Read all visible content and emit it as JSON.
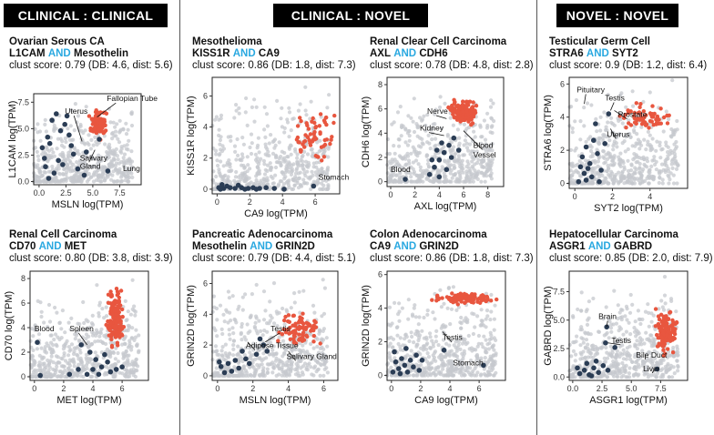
{
  "headers": [
    "CLINICAL : CLINICAL",
    "CLINICAL : NOVEL",
    "NOVEL : NOVEL"
  ],
  "and_word": "AND",
  "colors": {
    "background_points": "#c5c8cd",
    "tumor_points": "#e8563f",
    "normal_points": "#2b3d55",
    "and_highlight": "#29a8e0"
  },
  "chart_data": [
    {
      "type": "scatter",
      "title": "Ovarian Serous CA",
      "gene1": "L1CAM",
      "gene2": "Mesothelin",
      "score_line": "clust score: 0.79 (DB: 4.6, dist: 5.6)",
      "xlabel": "MSLN log(TPM)",
      "ylabel": "L1CAM log(TPM)",
      "xlim": [
        -0.5,
        9.5
      ],
      "ylim": [
        -0.3,
        8.3
      ],
      "xticks": [
        0.0,
        2.5,
        5.0,
        7.5
      ],
      "yticks": [
        0.0,
        2.5,
        5.0,
        7.5
      ],
      "tumor": {
        "cx": [
          4.5,
          6.5
        ],
        "cy": [
          4,
          7
        ],
        "n": 90
      },
      "normal": [
        [
          0.3,
          3.2
        ],
        [
          0.8,
          4.2
        ],
        [
          1.2,
          5.8
        ],
        [
          1.6,
          6.4
        ],
        [
          2.0,
          4.8
        ],
        [
          2.4,
          5.4
        ],
        [
          0.5,
          2.2
        ],
        [
          1.0,
          3.6
        ],
        [
          2.8,
          4.4
        ],
        [
          3.2,
          2.6
        ],
        [
          1.8,
          2.0
        ],
        [
          0.6,
          1.4
        ],
        [
          1.4,
          0.8
        ],
        [
          2.2,
          1.6
        ],
        [
          3.6,
          1.2
        ],
        [
          4.2,
          0.6
        ],
        [
          3.0,
          3.4
        ],
        [
          0.9,
          0.3
        ],
        [
          5.6,
          4.0
        ],
        [
          4.4,
          2.8
        ],
        [
          6.4,
          1.0
        ],
        [
          2.6,
          6.2
        ]
      ],
      "annotations": [
        {
          "text": "Fallopian Tube",
          "x": 6.3,
          "y": 7.6,
          "px": 5.4,
          "py": 6.1
        },
        {
          "text": "Uterus",
          "x": 2.4,
          "y": 6.4,
          "px": 4.0,
          "py": 3.8
        },
        {
          "text": "Salivary",
          "x": 3.8,
          "y": 2.0,
          "px": 5.2,
          "py": 3.0
        },
        {
          "text": "Gland",
          "x": 3.8,
          "y": 1.2,
          "px": null,
          "py": null
        },
        {
          "text": "Lung",
          "x": 7.8,
          "y": 1.0,
          "px": null,
          "py": null
        }
      ]
    },
    {
      "type": "scatter",
      "title": "Mesothelioma",
      "gene1": "KISS1R",
      "gene2": "CA9",
      "score_line": "clust score: 0.86 (DB: 1.8, dist: 7.3)",
      "xlabel": "CA9 log(TPM)",
      "ylabel": "KISS1R log(TPM)",
      "xlim": [
        -0.3,
        7.5
      ],
      "ylim": [
        -0.3,
        7.2
      ],
      "xticks": [
        0,
        2,
        4,
        6
      ],
      "yticks": [
        0,
        2,
        4,
        6
      ],
      "tumor": {
        "cx": [
          4.5,
          7.3
        ],
        "cy": [
          1.4,
          5.6
        ],
        "n": 60
      },
      "normal": [
        [
          0.1,
          0.1
        ],
        [
          0.4,
          0.05
        ],
        [
          0.8,
          0.1
        ],
        [
          1.1,
          0.05
        ],
        [
          1.5,
          0.1
        ],
        [
          1.9,
          0.05
        ],
        [
          2.2,
          0.1
        ],
        [
          2.6,
          0.05
        ],
        [
          3.0,
          0.1
        ],
        [
          3.5,
          0.05
        ],
        [
          0.3,
          0.3
        ],
        [
          0.6,
          0.2
        ],
        [
          1.3,
          0.25
        ],
        [
          0.2,
          0.0
        ],
        [
          1.7,
          0.0
        ],
        [
          2.4,
          0.0
        ],
        [
          5.9,
          0.2
        ],
        [
          4.1,
          0.0
        ]
      ],
      "annotations": [
        {
          "text": "Stomach",
          "x": 6.2,
          "y": 0.6,
          "px": null,
          "py": null
        }
      ]
    },
    {
      "type": "scatter",
      "title": "Renal Clear Cell Carcinoma",
      "gene1": "AXL",
      "gene2": "CDH6",
      "score_line": "clust score: 0.78 (DB: 4.8, dist: 2.8)",
      "xlabel": "AXL log(TPM)",
      "ylabel": "CDH6 log(TPM)",
      "xlim": [
        -0.3,
        9.3
      ],
      "ylim": [
        -0.4,
        8.6
      ],
      "xticks": [
        0,
        2,
        4,
        6,
        8
      ],
      "yticks": [
        0,
        2,
        4,
        6,
        8
      ],
      "tumor": {
        "cx": [
          4.6,
          7.4
        ],
        "cy": [
          4.6,
          6.8
        ],
        "n": 140
      },
      "normal": [
        [
          1.2,
          0.2
        ],
        [
          3.2,
          0.6
        ],
        [
          3.6,
          1.2
        ],
        [
          4.0,
          1.8
        ],
        [
          4.4,
          2.4
        ],
        [
          4.8,
          3.0
        ],
        [
          5.2,
          3.6
        ],
        [
          3.8,
          2.6
        ],
        [
          4.6,
          1.0
        ],
        [
          5.0,
          2.0
        ],
        [
          3.4,
          1.8
        ],
        [
          4.2,
          3.2
        ],
        [
          5.6,
          2.6
        ],
        [
          4.0,
          0.4
        ]
      ],
      "annotations": [
        {
          "text": "Nerve",
          "x": 3.0,
          "y": 5.6,
          "px": 4.6,
          "py": 5.2
        },
        {
          "text": "Kidney",
          "x": 2.4,
          "y": 4.2,
          "px": 4.4,
          "py": 3.8
        },
        {
          "text": "Blood",
          "x": 0.0,
          "y": 0.8,
          "px": null,
          "py": null
        },
        {
          "text": "Blood",
          "x": 6.8,
          "y": 2.8,
          "px": 6.0,
          "py": 4.2
        },
        {
          "text": "Vessel",
          "x": 6.8,
          "y": 2.0,
          "px": null,
          "py": null
        }
      ]
    },
    {
      "type": "scatter",
      "title": "Testicular Germ Cell",
      "gene1": "STRA6",
      "gene2": "SYT2",
      "score_line": "clust score: 0.9 (DB: 1.2, dist: 6.4)",
      "xlabel": "SYT2 log(TPM)",
      "ylabel": "STRA6 log(TPM)",
      "xlim": [
        -0.3,
        6.0
      ],
      "ylim": [
        -0.3,
        6.4
      ],
      "xticks": [
        0,
        2,
        4
      ],
      "yticks": [
        0,
        2,
        4,
        6
      ],
      "tumor": {
        "cx": [
          2.2,
          5.4
        ],
        "cy": [
          3.0,
          5.0
        ],
        "n": 60
      },
      "normal": [
        [
          0.4,
          1.6
        ],
        [
          0.6,
          2.2
        ],
        [
          0.8,
          1.2
        ],
        [
          1.0,
          2.6
        ],
        [
          0.5,
          0.6
        ],
        [
          0.7,
          0.9
        ],
        [
          1.2,
          1.8
        ],
        [
          0.3,
          1.0
        ],
        [
          0.9,
          0.4
        ],
        [
          1.4,
          0.8
        ],
        [
          0.6,
          0.2
        ],
        [
          1.6,
          2.4
        ],
        [
          1.1,
          3.6
        ],
        [
          1.8,
          4.2
        ],
        [
          0.2,
          0.1
        ],
        [
          1.3,
          0.1
        ]
      ],
      "annotations": [
        {
          "text": "Pituitary",
          "x": 0.1,
          "y": 5.5,
          "px": 0.5,
          "py": 4.8
        },
        {
          "text": "Testis",
          "x": 1.6,
          "y": 5.0,
          "px": 1.9,
          "py": 4.4
        },
        {
          "text": "Prostate",
          "x": 2.3,
          "y": 4.0,
          "px": 2.1,
          "py": 4.4
        },
        {
          "text": "Uterus",
          "x": 1.7,
          "y": 2.8,
          "px": 1.9,
          "py": 3.3
        }
      ]
    },
    {
      "type": "scatter",
      "title": "Renal Cell Carcinoma",
      "gene1": "CD70",
      "gene2": "MET",
      "score_line": "clust score: 0.80 (DB: 3.8, dist: 3.9)",
      "xlabel": "MET log(TPM)",
      "ylabel": "CD70 log(TPM)",
      "xlim": [
        -0.3,
        7.8
      ],
      "ylim": [
        -0.3,
        8.6
      ],
      "xticks": [
        0,
        2,
        4,
        6
      ],
      "yticks": [
        0,
        2,
        4,
        6,
        8
      ],
      "tumor": {
        "cx": [
          4.8,
          6.2
        ],
        "cy": [
          2.0,
          7.8
        ],
        "n": 140
      },
      "normal": [
        [
          0.2,
          2.8
        ],
        [
          3.2,
          2.6
        ],
        [
          3.8,
          2.0
        ],
        [
          4.2,
          1.4
        ],
        [
          4.6,
          0.8
        ],
        [
          5.2,
          0.4
        ],
        [
          3.6,
          0.2
        ],
        [
          4.0,
          0.6
        ],
        [
          4.8,
          1.8
        ],
        [
          5.6,
          0.6
        ],
        [
          2.4,
          0.2
        ],
        [
          4.4,
          0.2
        ],
        [
          5.0,
          1.2
        ],
        [
          3.0,
          0.6
        ],
        [
          6.0,
          0.8
        ],
        [
          0.4,
          0.1
        ]
      ],
      "annotations": [
        {
          "text": "Blood",
          "x": 0.0,
          "y": 3.7,
          "px": null,
          "py": null
        },
        {
          "text": "Spleen",
          "x": 2.4,
          "y": 3.7,
          "px": 3.6,
          "py": 2.6
        }
      ]
    },
    {
      "type": "scatter",
      "title": "Pancreatic Adenocarcinoma",
      "gene1": "Mesothelin",
      "gene2": "GRIN2D",
      "score_line": "clust score: 0.79 (DB: 4.4, dist: 5.1)",
      "xlabel": "MSLN log(TPM)",
      "ylabel": "GRIN2D log(TPM)",
      "xlim": [
        -0.3,
        6.8
      ],
      "ylim": [
        -0.3,
        6.8
      ],
      "xticks": [
        0,
        2,
        4,
        6
      ],
      "yticks": [
        0,
        2,
        4,
        6
      ],
      "tumor": {
        "cx": [
          3.2,
          6.4
        ],
        "cy": [
          1.6,
          4.4
        ],
        "n": 80
      },
      "normal": [
        [
          0.2,
          0.6
        ],
        [
          0.6,
          0.8
        ],
        [
          1.0,
          1.0
        ],
        [
          1.4,
          1.6
        ],
        [
          1.8,
          0.8
        ],
        [
          2.2,
          1.4
        ],
        [
          0.4,
          0.2
        ],
        [
          0.8,
          0.3
        ],
        [
          1.2,
          0.5
        ],
        [
          2.6,
          2.0
        ],
        [
          2.4,
          2.4
        ],
        [
          1.6,
          1.1
        ],
        [
          2.8,
          1.6
        ],
        [
          0.1,
          0.9
        ]
      ],
      "annotations": [
        {
          "text": "Testis",
          "x": 3.0,
          "y": 2.9,
          "px": 2.7,
          "py": 2.2
        },
        {
          "text": "Adipose Tissue",
          "x": 1.6,
          "y": 1.8,
          "px": 1.7,
          "py": 2.2
        },
        {
          "text": "Salivary Gland",
          "x": 3.9,
          "y": 1.1,
          "px": 4.0,
          "py": 1.6
        }
      ]
    },
    {
      "type": "scatter",
      "title": "Colon Adenocarcinoma",
      "gene1": "CA9",
      "gene2": "GRIN2D",
      "score_line": "clust score: 0.86 (DB: 1.8, dist: 7.3)",
      "xlabel": "CA9 log(TPM)",
      "ylabel": "GRIN2D log(TPM)",
      "xlim": [
        -0.3,
        7.8
      ],
      "ylim": [
        -0.3,
        6.2
      ],
      "xticks": [
        0,
        2,
        4,
        6
      ],
      "yticks": [
        0,
        2,
        4,
        6
      ],
      "tumor": {
        "cx": [
          2.6,
          7.4
        ],
        "cy": [
          4.2,
          5.0
        ],
        "n": 110
      },
      "normal": [
        [
          0.1,
          0.2
        ],
        [
          0.3,
          0.8
        ],
        [
          0.5,
          0.4
        ],
        [
          0.7,
          1.0
        ],
        [
          0.9,
          0.6
        ],
        [
          1.1,
          0.2
        ],
        [
          1.3,
          0.9
        ],
        [
          1.5,
          0.5
        ],
        [
          1.7,
          1.2
        ],
        [
          0.2,
          1.4
        ],
        [
          0.6,
          0.1
        ],
        [
          1.0,
          1.6
        ],
        [
          1.9,
          0.3
        ],
        [
          2.1,
          0.9
        ],
        [
          3.6,
          1.5
        ],
        [
          6.3,
          0.6
        ]
      ],
      "annotations": [
        {
          "text": "Testis",
          "x": 3.5,
          "y": 2.1,
          "px": 3.5,
          "py": 2.6
        },
        {
          "text": "Stomach",
          "x": 4.2,
          "y": 0.6,
          "px": null,
          "py": null
        }
      ]
    },
    {
      "type": "scatter",
      "title": "Hepatocellular Carcinoma",
      "gene1": "ASGR1",
      "gene2": "GABRD",
      "score_line": "clust score: 0.85 (DB: 2.0, dist: 7.9)",
      "xlabel": "ASGR1 log(TPM)",
      "ylabel": "GABRD log(TPM)",
      "xlim": [
        -0.3,
        9.8
      ],
      "ylim": [
        -0.3,
        9.3
      ],
      "xticks": [
        0.0,
        2.5,
        5.0,
        7.5
      ],
      "yticks": [
        0.0,
        2.5,
        5.0,
        7.5
      ],
      "tumor": {
        "cx": [
          6.8,
          9.0
        ],
        "cy": [
          1.8,
          6.2
        ],
        "n": 130
      },
      "normal": [
        [
          0.6,
          0.3
        ],
        [
          1.0,
          0.6
        ],
        [
          1.4,
          0.2
        ],
        [
          1.8,
          0.8
        ],
        [
          2.2,
          0.4
        ],
        [
          2.6,
          1.0
        ],
        [
          2.0,
          1.4
        ],
        [
          0.4,
          0.8
        ],
        [
          1.2,
          1.2
        ],
        [
          3.0,
          0.6
        ],
        [
          2.8,
          3.0
        ],
        [
          2.9,
          4.4
        ],
        [
          3.6,
          2.6
        ],
        [
          7.2,
          0.7
        ],
        [
          1.6,
          0.1
        ]
      ],
      "annotations": [
        {
          "text": "Brain",
          "x": 2.2,
          "y": 5.1,
          "px": 2.9,
          "py": 4.4
        },
        {
          "text": "Testis",
          "x": 3.3,
          "y": 3.0,
          "px": 3.0,
          "py": 3.0
        },
        {
          "text": "Bile Duct",
          "x": 5.4,
          "y": 1.7,
          "px": 6.2,
          "py": 2.0
        },
        {
          "text": "Liver",
          "x": 6.0,
          "y": 0.5,
          "px": 7.0,
          "py": 0.7
        }
      ]
    }
  ]
}
